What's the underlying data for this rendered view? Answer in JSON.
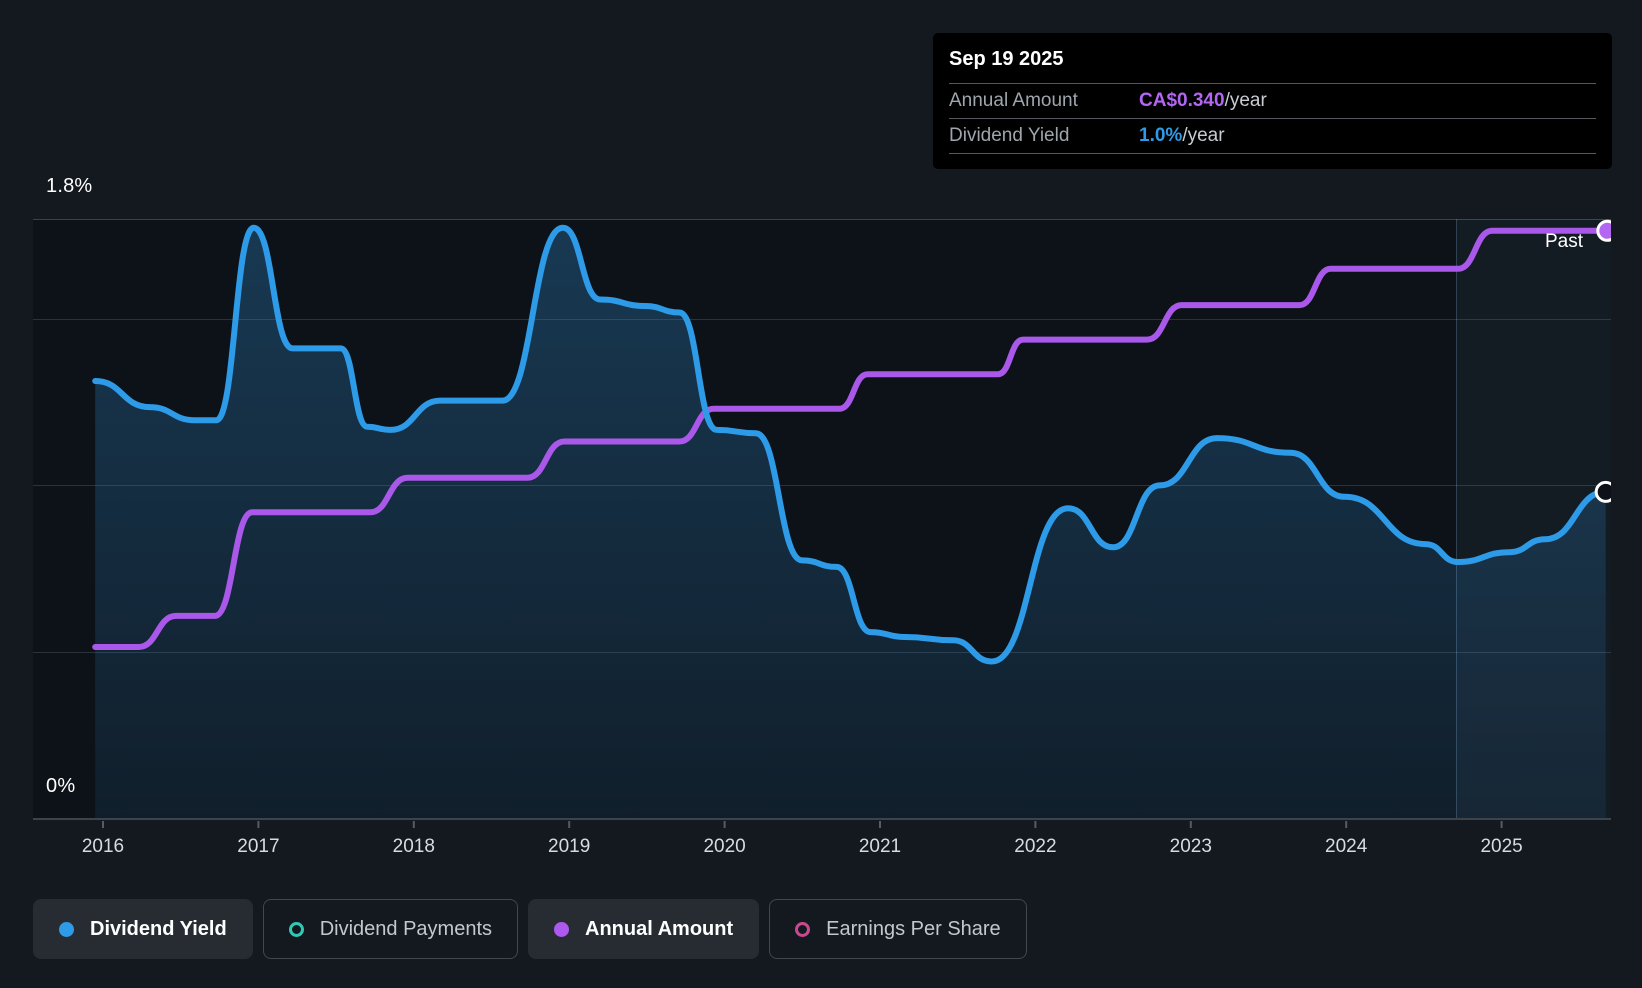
{
  "tooltip": {
    "date": "Sep 19 2025",
    "rows": [
      {
        "label": "Annual Amount",
        "value": "CA$0.340",
        "suffix": "/year",
        "color": "#B266F2"
      },
      {
        "label": "Dividend Yield",
        "value": "1.0%",
        "suffix": "/year",
        "color": "#2D9BE8"
      }
    ]
  },
  "axes": {
    "y_top_label": "1.8%",
    "y_bottom_label": "0%",
    "x_labels": [
      "2016",
      "2017",
      "2018",
      "2019",
      "2020",
      "2021",
      "2022",
      "2023",
      "2024",
      "2025"
    ]
  },
  "past_label": "Past",
  "legend": [
    {
      "label": "Dividend Yield",
      "marker": "dot",
      "color": "#2D9BE8",
      "active": true
    },
    {
      "label": "Dividend Payments",
      "marker": "ring",
      "color": "#2FC9B6",
      "active": false
    },
    {
      "label": "Annual Amount",
      "marker": "dot",
      "color": "#AC59EE",
      "active": true
    },
    {
      "label": "Earnings Per Share",
      "marker": "ring",
      "color": "#C8498E",
      "active": false
    }
  ],
  "colors": {
    "page_bg": "#14181F",
    "plot_bg": "#0D1218",
    "dividend_yield": "#2D9BE8",
    "annual_amount": "#A958EA",
    "dividend_payments": "#2FC9B6",
    "earnings_per_share": "#C8498E",
    "tooltip_bg": "#000000"
  },
  "chart_data": {
    "type": "line",
    "title": "Dividend history (yield and annual amount)",
    "x_axis": {
      "tick_labels": [
        "2016",
        "2017",
        "2018",
        "2019",
        "2020",
        "2021",
        "2022",
        "2023",
        "2024",
        "2025"
      ],
      "range_years": [
        2015.95,
        2025.71
      ]
    },
    "y_axis": {
      "unit": "%",
      "top_label": "1.8%",
      "bottom_label": "0%",
      "range": [
        0,
        1.8
      ],
      "gridlines": "horizontal"
    },
    "past_boundary_year": 2024.71,
    "legend_position": "bottom-left",
    "series": [
      {
        "name": "Dividend Yield",
        "style": "area-line",
        "unit": "%",
        "color": "#2D9BE8",
        "end_marker": "open-circle",
        "end_value_label": "1.0%/year",
        "points": [
          [
            2015.95,
            1.34
          ],
          [
            2016.3,
            1.26
          ],
          [
            2016.59,
            1.22
          ],
          [
            2016.73,
            1.22
          ],
          [
            2016.97,
            1.81
          ],
          [
            2017.22,
            1.44
          ],
          [
            2017.53,
            1.44
          ],
          [
            2017.7,
            1.2
          ],
          [
            2017.85,
            1.19
          ],
          [
            2018.17,
            1.28
          ],
          [
            2018.57,
            1.28
          ],
          [
            2018.96,
            1.81
          ],
          [
            2019.2,
            1.59
          ],
          [
            2019.49,
            1.57
          ],
          [
            2019.71,
            1.55
          ],
          [
            2019.95,
            1.19
          ],
          [
            2020.2,
            1.18
          ],
          [
            2020.5,
            0.79
          ],
          [
            2020.72,
            0.77
          ],
          [
            2020.94,
            0.57
          ],
          [
            2021.16,
            0.555
          ],
          [
            2021.47,
            0.545
          ],
          [
            2021.72,
            0.48
          ],
          [
            2022.21,
            0.95
          ],
          [
            2022.5,
            0.83
          ],
          [
            2022.8,
            1.02
          ],
          [
            2023.17,
            1.165
          ],
          [
            2023.64,
            1.12
          ],
          [
            2023.99,
            0.985
          ],
          [
            2024.51,
            0.84
          ],
          [
            2024.72,
            0.785
          ],
          [
            2025.05,
            0.815
          ],
          [
            2025.28,
            0.855
          ],
          [
            2025.67,
            1.0
          ]
        ]
      },
      {
        "name": "Annual Amount",
        "style": "step-line",
        "unit": "CA$/share/year",
        "color": "#A958EA",
        "end_marker": "filled-circle",
        "end_value_label": "CA$0.340/year",
        "points": [
          [
            2015.95,
            0.099
          ],
          [
            2016.23,
            0.099
          ],
          [
            2016.47,
            0.117
          ],
          [
            2016.72,
            0.117
          ],
          [
            2016.96,
            0.177
          ],
          [
            2017.72,
            0.177
          ],
          [
            2017.96,
            0.197
          ],
          [
            2018.73,
            0.197
          ],
          [
            2018.97,
            0.218
          ],
          [
            2019.71,
            0.218
          ],
          [
            2019.93,
            0.237
          ],
          [
            2020.74,
            0.237
          ],
          [
            2020.92,
            0.257
          ],
          [
            2021.76,
            0.257
          ],
          [
            2021.92,
            0.277
          ],
          [
            2022.72,
            0.277
          ],
          [
            2022.94,
            0.297
          ],
          [
            2023.7,
            0.297
          ],
          [
            2023.9,
            0.318
          ],
          [
            2024.72,
            0.318
          ],
          [
            2024.94,
            0.34
          ],
          [
            2025.68,
            0.34
          ]
        ]
      },
      {
        "name": "Dividend Payments",
        "style": "hidden",
        "color": "#2FC9B6",
        "points": []
      },
      {
        "name": "Earnings Per Share",
        "style": "hidden",
        "color": "#C8498E",
        "points": []
      }
    ]
  }
}
